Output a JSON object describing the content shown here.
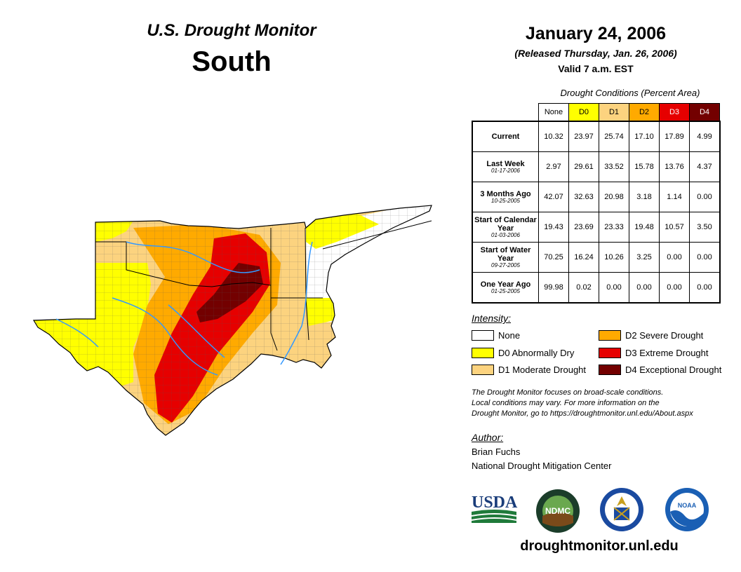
{
  "header": {
    "title": "U.S. Drought Monitor",
    "region": "South",
    "date": "January 24, 2006",
    "released": "(Released Thursday, Jan. 26, 2006)",
    "valid": "Valid 7 a.m. EST"
  },
  "conditions": {
    "title": "Drought Conditions (Percent Area)",
    "columns": [
      "None",
      "D0",
      "D1",
      "D2",
      "D3",
      "D4"
    ],
    "column_colors": [
      "#ffffff",
      "#ffff00",
      "#fcd37f",
      "#ffaa00",
      "#e60000",
      "#730000"
    ],
    "rows": [
      {
        "label": "Current",
        "date": "",
        "values": [
          "10.32",
          "23.97",
          "25.74",
          "17.10",
          "17.89",
          "4.99"
        ]
      },
      {
        "label": "Last Week",
        "date": "01-17-2006",
        "values": [
          "2.97",
          "29.61",
          "33.52",
          "15.78",
          "13.76",
          "4.37"
        ]
      },
      {
        "label": "3 Months Ago",
        "date": "10-25-2005",
        "values": [
          "42.07",
          "32.63",
          "20.98",
          "3.18",
          "1.14",
          "0.00"
        ]
      },
      {
        "label": "Start of Calendar Year",
        "date": "01-03-2006",
        "values": [
          "19.43",
          "23.69",
          "23.33",
          "19.48",
          "10.57",
          "3.50"
        ]
      },
      {
        "label": "Start of Water Year",
        "date": "09-27-2005",
        "values": [
          "70.25",
          "16.24",
          "10.26",
          "3.25",
          "0.00",
          "0.00"
        ]
      },
      {
        "label": "One Year Ago",
        "date": "01-25-2005",
        "values": [
          "99.98",
          "0.02",
          "0.00",
          "0.00",
          "0.00",
          "0.00"
        ]
      }
    ]
  },
  "legend": {
    "title": "Intensity:",
    "items": [
      {
        "label": "None",
        "color": "#ffffff"
      },
      {
        "label": "D0 Abnormally Dry",
        "color": "#ffff00"
      },
      {
        "label": "D1 Moderate Drought",
        "color": "#fcd37f"
      },
      {
        "label": "D2 Severe Drought",
        "color": "#ffaa00"
      },
      {
        "label": "D3 Extreme Drought",
        "color": "#e60000"
      },
      {
        "label": "D4 Exceptional Drought",
        "color": "#730000"
      }
    ]
  },
  "note": {
    "line1": "The Drought Monitor focuses on broad-scale conditions.",
    "line2": "Local conditions may vary. For more information on the",
    "line3": "Drought Monitor, go to https://droughtmonitor.unl.edu/About.aspx"
  },
  "author": {
    "heading": "Author:",
    "name": "Brian Fuchs",
    "org": "National Drought Mitigation Center"
  },
  "logos": {
    "usda": "USDA",
    "ndmc": "NDMC",
    "noaa": "NOAA"
  },
  "footer": {
    "url": "droughtmonitor.unl.edu"
  }
}
